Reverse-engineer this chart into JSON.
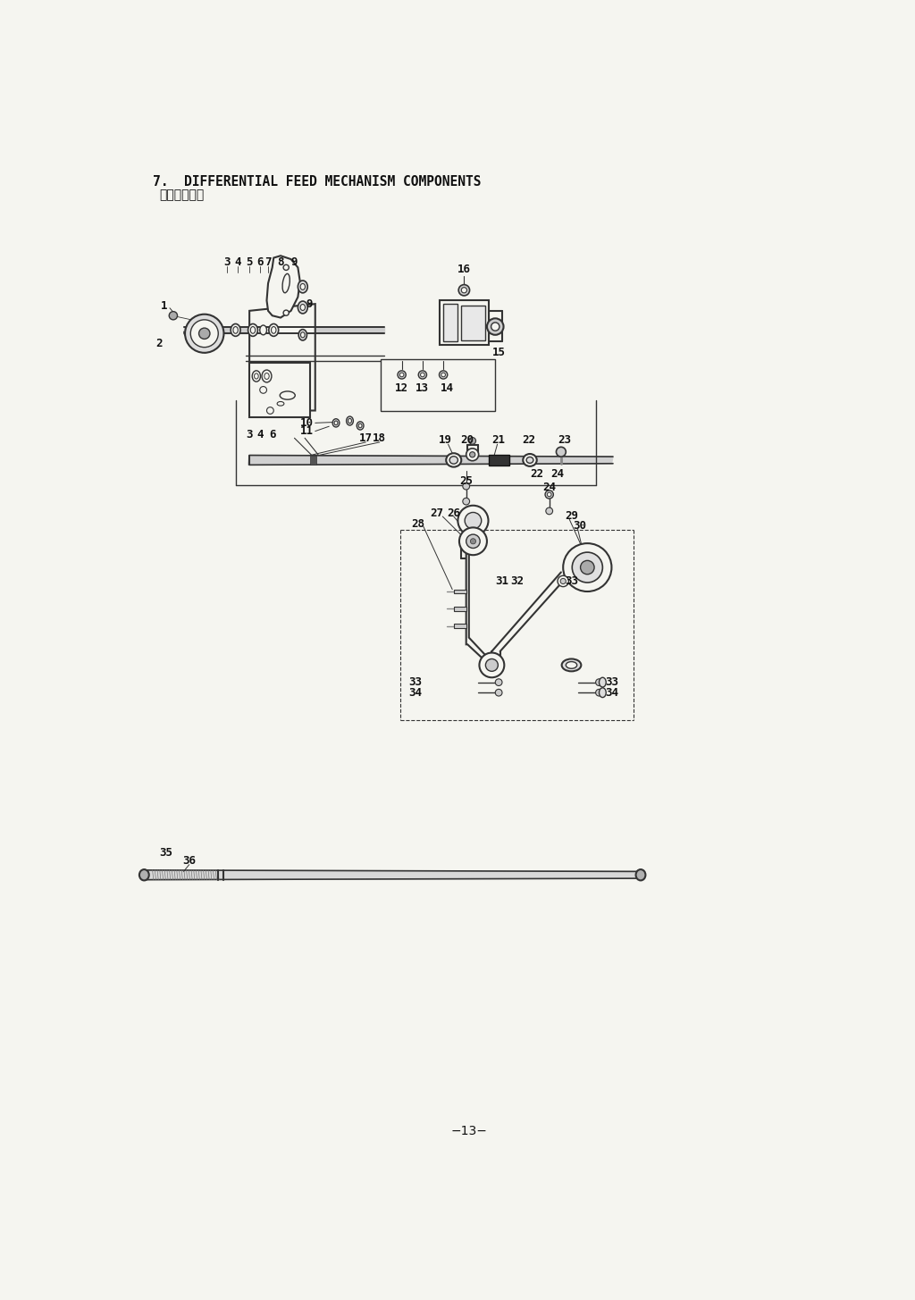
{
  "title_line1": "7.  DIFFERENTIAL FEED MECHANISM COMPONENTS",
  "title_line2": "差動送り関係",
  "page_number": "−13−",
  "bg": "#f5f5f0",
  "lc": "#333333",
  "tc": "#111111"
}
